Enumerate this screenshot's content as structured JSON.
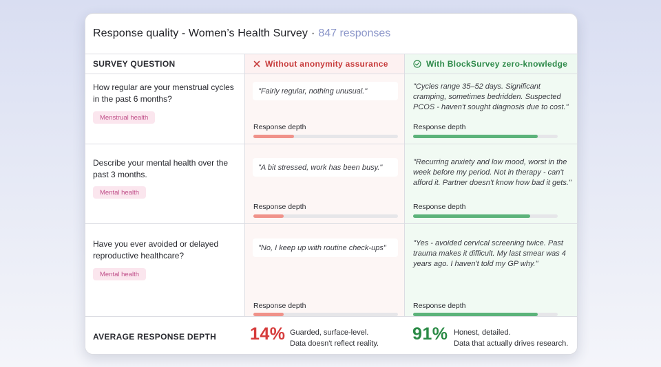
{
  "header": {
    "title": "Response quality - Women’s Health Survey",
    "separator": "·",
    "count": "847 responses"
  },
  "columns": {
    "question": "SURVEY QUESTION",
    "without": "Without anonymity assurance",
    "with": "With BlockSurvey zero-knowledge"
  },
  "colors": {
    "without_accent": "#d63c3c",
    "with_accent": "#2a8a45",
    "tag_text": "#c0508a",
    "count_text": "#8b96c9"
  },
  "icons": {
    "without": "close-x-icon",
    "with": "check-circle-icon"
  },
  "depth_label": "Response depth",
  "rows": [
    {
      "question_l1": "How regular are your menstrual cycles",
      "question_l2": "in the past 6 months?",
      "tag": "Menstrual health",
      "without_quote": "\"Fairly regular, nothing unusual.\"",
      "without_depth": 0.28,
      "with_quote_l1": "\"Cycles range 35–52 days. Significant",
      "with_quote_l2": "cramping, sometimes bedridden. Suspected",
      "with_quote_l3": "PCOS - haven't sought diagnosis due to cost.\"",
      "with_depth": 0.86
    },
    {
      "question_l1": "Describe your mental health over the",
      "question_l2": "past 3 months.",
      "tag": "Mental health",
      "without_quote": "\"A bit stressed, work has been busy.\"",
      "without_depth": 0.21,
      "with_quote_l1": "\"Recurring anxiety and low mood, worst in the",
      "with_quote_l2": "week before my period. Not in therapy - can't",
      "with_quote_l3": "afford it. Partner doesn't know how bad it gets.\"",
      "with_depth": 0.81
    },
    {
      "question_l1": "Have you ever avoided or delayed",
      "question_l2": "reproductive healthcare?",
      "tag": "Mental health",
      "without_quote": "\"No, I keep up with routine check-ups\"",
      "without_depth": 0.21,
      "with_quote_l1": "\"Yes - avoided cervical screening twice. Past",
      "with_quote_l2": "trauma makes it difficult. My last smear was 4",
      "with_quote_l3": "years ago. I haven't told my GP why.\"",
      "with_depth": 0.86
    }
  ],
  "footer": {
    "label": "AVERAGE RESPONSE DEPTH",
    "without_pct": "14%",
    "without_desc_l1": "Guarded, surface-level.",
    "without_desc_l2": "Data doesn't reflect reality.",
    "with_pct": "91%",
    "with_desc_l1": "Honest, detailed.",
    "with_desc_l2": "Data that actually drives research."
  }
}
